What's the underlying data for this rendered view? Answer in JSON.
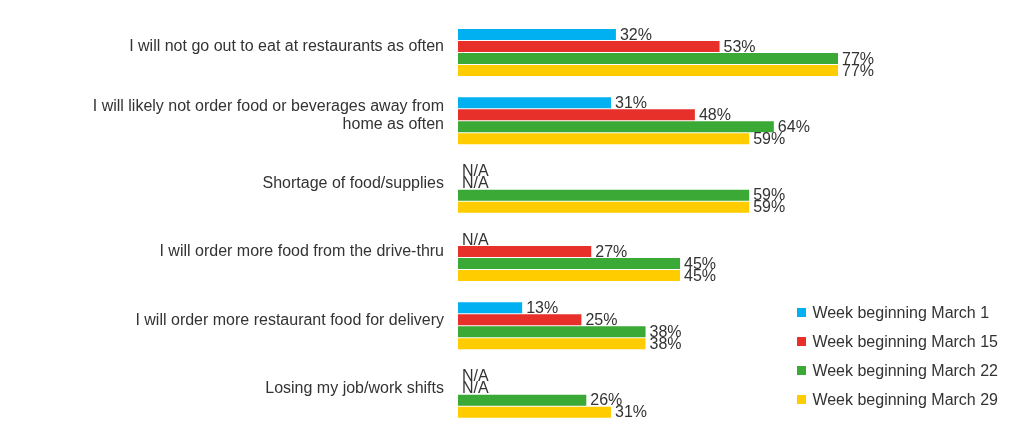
{
  "chart_data": {
    "type": "bar",
    "orientation": "horizontal",
    "legend": "bottom right",
    "categories": [
      "I will not go out to eat at restaurants as often",
      "I will likely not order food or beverages away from home as often",
      "Shortage of food/supplies",
      "I will order more food from the drive-thru",
      "I will order more restaurant food for delivery",
      "Losing my job/work shifts"
    ],
    "series": [
      {
        "name": "Week beginning March 1",
        "color": "#00b0f0",
        "values": [
          32,
          31,
          null,
          null,
          13,
          null
        ],
        "value_labels": [
          "32%",
          "31%",
          "N/A",
          "N/A",
          "13%",
          "N/A"
        ]
      },
      {
        "name": "Week beginning March 15",
        "color": "#e8302a",
        "values": [
          53,
          48,
          null,
          27,
          25,
          null
        ],
        "value_labels": [
          "53%",
          "48%",
          "N/A",
          "27%",
          "25%",
          "N/A"
        ]
      },
      {
        "name": "Week beginning March 22",
        "color": "#3aa935",
        "values": [
          77,
          64,
          59,
          45,
          38,
          26
        ],
        "value_labels": [
          "77%",
          "64%",
          "59%",
          "45%",
          "38%",
          "26%"
        ]
      },
      {
        "name": "Week beginning March 29",
        "color": "#ffcc00",
        "values": [
          77,
          59,
          59,
          45,
          38,
          31
        ],
        "value_labels": [
          "77%",
          "59%",
          "59%",
          "45%",
          "38%",
          "31%"
        ]
      }
    ]
  }
}
